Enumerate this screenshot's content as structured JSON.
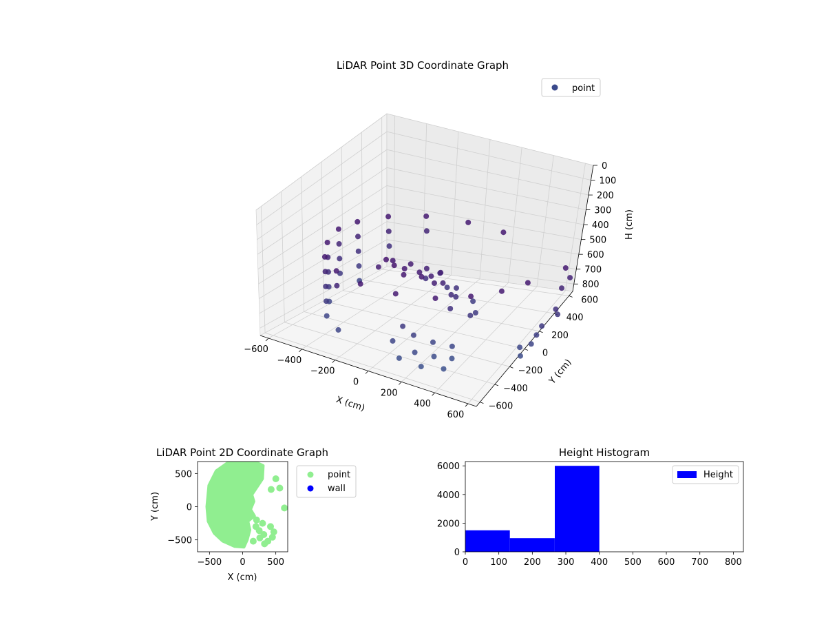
{
  "chart_data": [
    {
      "type": "scatter",
      "subtype": "3d",
      "title": "LiDAR Point 3D Coordinate Graph",
      "xlabel": "X (cm)",
      "ylabel": "Y (cm)",
      "zlabel": "H (cm)",
      "x_ticks": [
        "−600",
        "−400",
        "−200",
        "0",
        "200",
        "400",
        "600"
      ],
      "y_ticks": [
        "600",
        "400",
        "200",
        "0",
        "−200",
        "−400",
        "−600"
      ],
      "z_ticks": [
        "0",
        "100",
        "200",
        "300",
        "400",
        "500",
        "600",
        "700",
        "800"
      ],
      "xlim": [
        -650,
        650
      ],
      "ylim": [
        -650,
        650
      ],
      "zlim": [
        850,
        0
      ],
      "z_inverted": true,
      "grid": true,
      "legend": {
        "placement": "top-right",
        "entries": [
          "point"
        ]
      },
      "series": [
        {
          "name": "point",
          "color": "#3b4a8c",
          "colormap": "viridis-dark",
          "points": [
            [
              -520,
              -40,
              300
            ],
            [
              -470,
              -240,
              300
            ],
            [
              -380,
              -420,
              300
            ],
            [
              -240,
              -540,
              300
            ],
            [
              -60,
              -600,
              300
            ],
            [
              140,
              -580,
              300
            ],
            [
              320,
              -480,
              300
            ],
            [
              440,
              -320,
              300
            ],
            [
              520,
              -140,
              300
            ],
            [
              560,
              60,
              300
            ],
            [
              -500,
              120,
              300
            ],
            [
              -420,
              300,
              300
            ],
            [
              -280,
              450,
              300
            ],
            [
              -80,
              540,
              300
            ],
            [
              120,
              560,
              300
            ],
            [
              -520,
              -40,
              400
            ],
            [
              -470,
              -240,
              400
            ],
            [
              -380,
              -420,
              400
            ],
            [
              -240,
              -540,
              400
            ],
            [
              -500,
              120,
              400
            ],
            [
              -420,
              300,
              400
            ],
            [
              -280,
              450,
              400
            ],
            [
              -520,
              -40,
              500
            ],
            [
              -470,
              -240,
              500
            ],
            [
              -380,
              -420,
              500
            ],
            [
              -500,
              120,
              500
            ],
            [
              -420,
              300,
              500
            ],
            [
              -520,
              -40,
              600
            ],
            [
              -470,
              -240,
              600
            ],
            [
              -380,
              -420,
              600
            ],
            [
              -500,
              120,
              600
            ],
            [
              -470,
              -240,
              700
            ],
            [
              -380,
              -420,
              700
            ],
            [
              -240,
              -540,
              700
            ],
            [
              -500,
              120,
              700
            ],
            [
              -80,
              -300,
              250
            ],
            [
              0,
              -250,
              300
            ],
            [
              60,
              -200,
              320
            ],
            [
              100,
              -150,
              350
            ],
            [
              -40,
              -120,
              330
            ],
            [
              20,
              -60,
              360
            ],
            [
              80,
              -20,
              380
            ],
            [
              -100,
              -200,
              300
            ],
            [
              140,
              -100,
              400
            ],
            [
              40,
              40,
              420
            ],
            [
              -20,
              -320,
              260
            ],
            [
              120,
              -280,
              300
            ],
            [
              160,
              -220,
              350
            ],
            [
              60,
              -360,
              280
            ],
            [
              -140,
              -280,
              330
            ],
            [
              200,
              -120,
              450
            ],
            [
              180,
              -40,
              500
            ],
            [
              100,
              100,
              520
            ],
            [
              20,
              140,
              560
            ],
            [
              -60,
              60,
              500
            ],
            [
              240,
              -200,
              500
            ],
            [
              300,
              -100,
              560
            ],
            [
              260,
              20,
              600
            ],
            [
              150,
              180,
              620
            ],
            [
              80,
              -420,
              600
            ],
            [
              120,
              -380,
              660
            ],
            [
              200,
              -320,
              700
            ],
            [
              280,
              -260,
              720
            ],
            [
              40,
              -460,
              700
            ],
            [
              160,
              -440,
              740
            ],
            [
              240,
              -380,
              760
            ],
            [
              300,
              -300,
              780
            ],
            [
              220,
              -480,
              800
            ],
            [
              100,
              -500,
              780
            ],
            [
              320,
              -420,
              800
            ],
            [
              600,
              380,
              300
            ],
            [
              620,
              300,
              400
            ],
            [
              640,
              200,
              500
            ],
            [
              600,
              120,
              600
            ],
            [
              580,
              40,
              700
            ],
            [
              560,
              -40,
              760
            ],
            [
              600,
              420,
              380
            ],
            [
              620,
              250,
              560
            ],
            [
              590,
              80,
              650
            ],
            [
              540,
              -10,
              720
            ]
          ]
        }
      ]
    },
    {
      "type": "scatter",
      "title": "LiDAR Point 2D Coordinate Graph",
      "xlabel": "X (cm)",
      "ylabel": "Y (cm)",
      "x_ticks": [
        "−500",
        "0",
        "500"
      ],
      "y_ticks": [
        "500",
        "0",
        "−500"
      ],
      "xlim": [
        -680,
        680
      ],
      "ylim": [
        -680,
        680
      ],
      "grid": false,
      "legend": {
        "placement": "outside-right",
        "entries": [
          "point",
          "wall"
        ]
      },
      "series": [
        {
          "name": "point",
          "color": "#90ee90"
        },
        {
          "name": "wall",
          "color": "#0000ff"
        }
      ]
    },
    {
      "type": "bar",
      "subtype": "histogram",
      "title": "Height Histogram",
      "x_ticks": [
        "0",
        "100",
        "200",
        "300",
        "400",
        "500",
        "600",
        "700",
        "800"
      ],
      "y_ticks": [
        "0",
        "2000",
        "4000",
        "6000"
      ],
      "xlim": [
        0,
        830
      ],
      "ylim": [
        0,
        6300
      ],
      "grid": false,
      "legend": {
        "placement": "top-right",
        "entries": [
          "Height"
        ]
      },
      "series": [
        {
          "name": "Height",
          "color": "#0000ff",
          "bins": [
            {
              "start": 0,
              "end": 133,
              "value": 1500
            },
            {
              "start": 133,
              "end": 267,
              "value": 950
            },
            {
              "start": 267,
              "end": 400,
              "value": 6000
            },
            {
              "start": 400,
              "end": 533,
              "value": 0
            },
            {
              "start": 533,
              "end": 667,
              "value": 0
            },
            {
              "start": 667,
              "end": 800,
              "value": 0
            }
          ]
        }
      ]
    }
  ]
}
